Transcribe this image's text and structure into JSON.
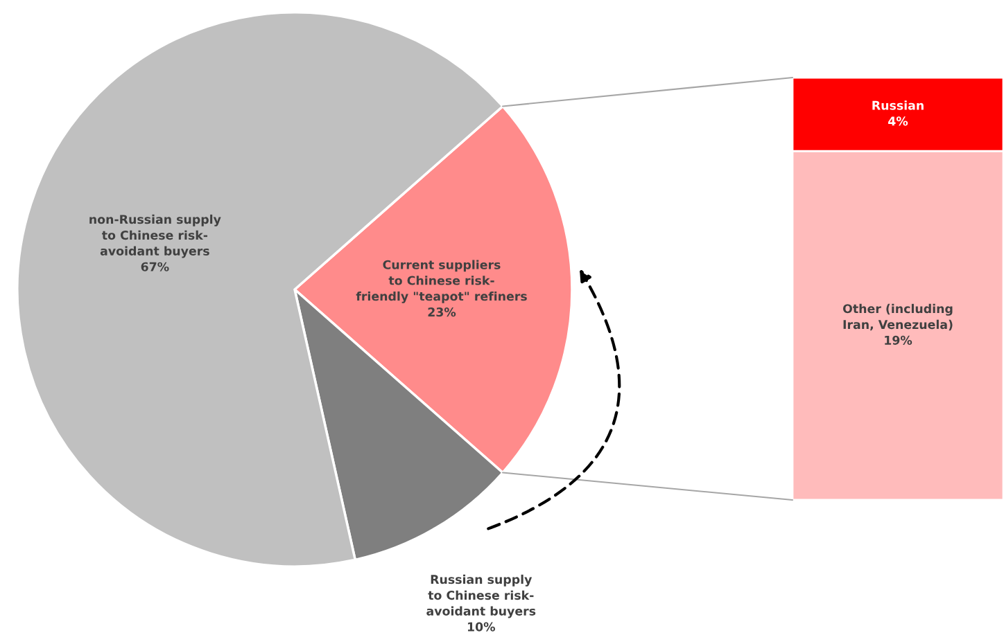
{
  "chart_data": [
    {
      "type": "pie",
      "categories": [
        "Current suppliers\nto Chinese risk-\nfriendly \"teapot\" refiners",
        "Russian supply\nto Chinese risk-\navoidant buyers",
        "non-Russian supply\nto Chinese risk-\navoidant buyers"
      ],
      "values": [
        23,
        10,
        67
      ],
      "colors": [
        "#ff8b8b",
        "#7f7f7f",
        "#c0c0c0"
      ],
      "value_labels": [
        "23%",
        "10%",
        "67%"
      ]
    },
    {
      "type": "bar",
      "stacked": true,
      "categories": [
        null
      ],
      "series": [
        {
          "name": "Other (including\nIran, Venezuela)",
          "color": "#ffbbbb",
          "values": [
            19
          ],
          "value_labels": [
            "19%"
          ]
        },
        {
          "name": "Russian",
          "color": "#ff0000",
          "values": [
            4
          ],
          "value_labels": [
            "4%"
          ]
        }
      ]
    }
  ]
}
